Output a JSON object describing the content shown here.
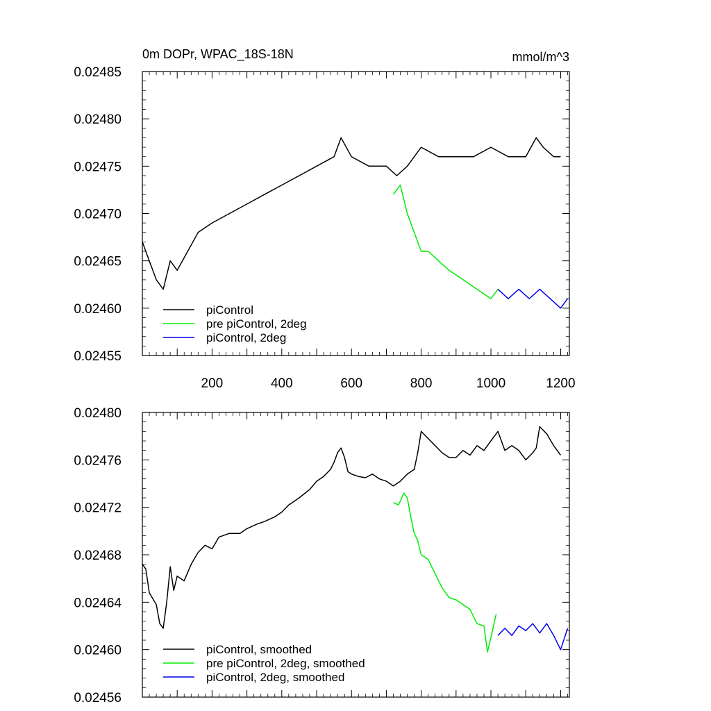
{
  "chart_data": [
    {
      "type": "line",
      "title": "0m DOPr, WPAC_18S-18N",
      "units": "mmol/m^3",
      "xlabel": "",
      "ylabel": "",
      "xlim": [
        0,
        1225
      ],
      "ylim": [
        0.02455,
        0.02485
      ],
      "xtick_labels": [
        "200",
        "400",
        "600",
        "800",
        "1000",
        "1200"
      ],
      "xtick_values": [
        200,
        400,
        600,
        800,
        1000,
        1200
      ],
      "ytick_labels": [
        "0.02485",
        "0.02480",
        "0.02475",
        "0.02470",
        "0.02465",
        "0.02460",
        "0.02455"
      ],
      "ytick_values": [
        0.02485,
        0.0248,
        0.02475,
        0.0247,
        0.02465,
        0.0246,
        0.02455
      ],
      "legend_position": "bottom-left",
      "series": [
        {
          "name": "piControl",
          "color": "#000000",
          "x": [
            0,
            20,
            40,
            60,
            80,
            100,
            130,
            160,
            200,
            250,
            300,
            350,
            400,
            450,
            500,
            550,
            570,
            600,
            650,
            700,
            730,
            760,
            800,
            850,
            900,
            950,
            1000,
            1050,
            1100,
            1130,
            1150,
            1180,
            1200
          ],
          "values": [
            0.02467,
            0.02465,
            0.02463,
            0.02462,
            0.02465,
            0.02464,
            0.02466,
            0.02468,
            0.02469,
            0.0247,
            0.02471,
            0.02472,
            0.02473,
            0.02474,
            0.02475,
            0.02476,
            0.02478,
            0.02476,
            0.02475,
            0.02475,
            0.02474,
            0.02475,
            0.02477,
            0.02476,
            0.02476,
            0.02476,
            0.02477,
            0.02476,
            0.02476,
            0.02478,
            0.02477,
            0.02476,
            0.02476
          ]
        },
        {
          "name": "pre piControl, 2deg",
          "color": "#00ee00",
          "x": [
            720,
            740,
            760,
            780,
            800,
            820,
            850,
            880,
            920,
            960,
            1000,
            1020
          ],
          "values": [
            0.02472,
            0.02473,
            0.0247,
            0.02468,
            0.02466,
            0.02466,
            0.02465,
            0.02464,
            0.02463,
            0.02462,
            0.02461,
            0.02462
          ]
        },
        {
          "name": "piControl, 2deg",
          "color": "#0000ee",
          "x": [
            1020,
            1050,
            1080,
            1110,
            1140,
            1170,
            1200,
            1220
          ],
          "values": [
            0.02462,
            0.02461,
            0.02462,
            0.02461,
            0.02462,
            0.02461,
            0.0246,
            0.02461
          ]
        }
      ]
    },
    {
      "type": "line",
      "title": "",
      "xlabel": "",
      "ylabel": "",
      "xlim": [
        0,
        1225
      ],
      "ylim": [
        0.02456,
        0.0248
      ],
      "xtick_labels": [],
      "ytick_labels": [
        "0.02480",
        "0.02476",
        "0.02472",
        "0.02468",
        "0.02464",
        "0.02460",
        "0.02456"
      ],
      "ytick_values": [
        0.0248,
        0.02476,
        0.02472,
        0.02468,
        0.02464,
        0.0246,
        0.02456
      ],
      "legend_position": "bottom-left",
      "series": [
        {
          "name": "piControl, smoothed",
          "color": "#000000",
          "x": [
            0,
            10,
            20,
            40,
            50,
            60,
            70,
            80,
            90,
            100,
            120,
            140,
            160,
            180,
            200,
            220,
            250,
            280,
            300,
            330,
            350,
            380,
            400,
            420,
            450,
            480,
            500,
            520,
            540,
            550,
            560,
            570,
            580,
            590,
            600,
            620,
            640,
            660,
            680,
            700,
            720,
            740,
            760,
            780,
            790,
            800,
            820,
            840,
            860,
            880,
            900,
            920,
            940,
            960,
            980,
            1000,
            1020,
            1040,
            1060,
            1080,
            1100,
            1120,
            1130,
            1140,
            1160,
            1180,
            1200
          ],
          "values": [
            0.024672,
            0.024668,
            0.024648,
            0.024638,
            0.024622,
            0.024618,
            0.02464,
            0.02467,
            0.02465,
            0.024662,
            0.024658,
            0.024672,
            0.024682,
            0.024688,
            0.024685,
            0.024695,
            0.024698,
            0.024698,
            0.024702,
            0.024706,
            0.024708,
            0.024712,
            0.024716,
            0.024722,
            0.024728,
            0.024735,
            0.024742,
            0.024746,
            0.024752,
            0.024758,
            0.024766,
            0.02477,
            0.024762,
            0.02475,
            0.024748,
            0.024746,
            0.024745,
            0.024748,
            0.024744,
            0.024742,
            0.024738,
            0.024742,
            0.024748,
            0.024752,
            0.024766,
            0.024784,
            0.024778,
            0.024772,
            0.024766,
            0.024762,
            0.024762,
            0.024768,
            0.024764,
            0.024772,
            0.024768,
            0.024776,
            0.024784,
            0.024768,
            0.024772,
            0.024768,
            0.02476,
            0.024766,
            0.02477,
            0.024788,
            0.024782,
            0.024772,
            0.024764
          ]
        },
        {
          "name": "pre piControl, 2deg, smoothed",
          "color": "#00ee00",
          "x": [
            720,
            735,
            750,
            760,
            770,
            780,
            790,
            800,
            820,
            840,
            860,
            880,
            900,
            920,
            940,
            960,
            980,
            990,
            1000,
            1015
          ],
          "values": [
            0.024724,
            0.024722,
            0.024732,
            0.024728,
            0.024712,
            0.024698,
            0.024692,
            0.02468,
            0.024676,
            0.024664,
            0.024652,
            0.024644,
            0.024642,
            0.024638,
            0.024634,
            0.024622,
            0.02462,
            0.024598,
            0.02461,
            0.02463
          ]
        },
        {
          "name": "piControl, 2deg, smoothed",
          "color": "#0000ee",
          "x": [
            1020,
            1040,
            1060,
            1080,
            1100,
            1120,
            1140,
            1160,
            1180,
            1200,
            1220
          ],
          "values": [
            0.024612,
            0.024618,
            0.024612,
            0.02462,
            0.024616,
            0.024622,
            0.024614,
            0.024622,
            0.024612,
            0.0246,
            0.024618
          ]
        }
      ]
    }
  ]
}
